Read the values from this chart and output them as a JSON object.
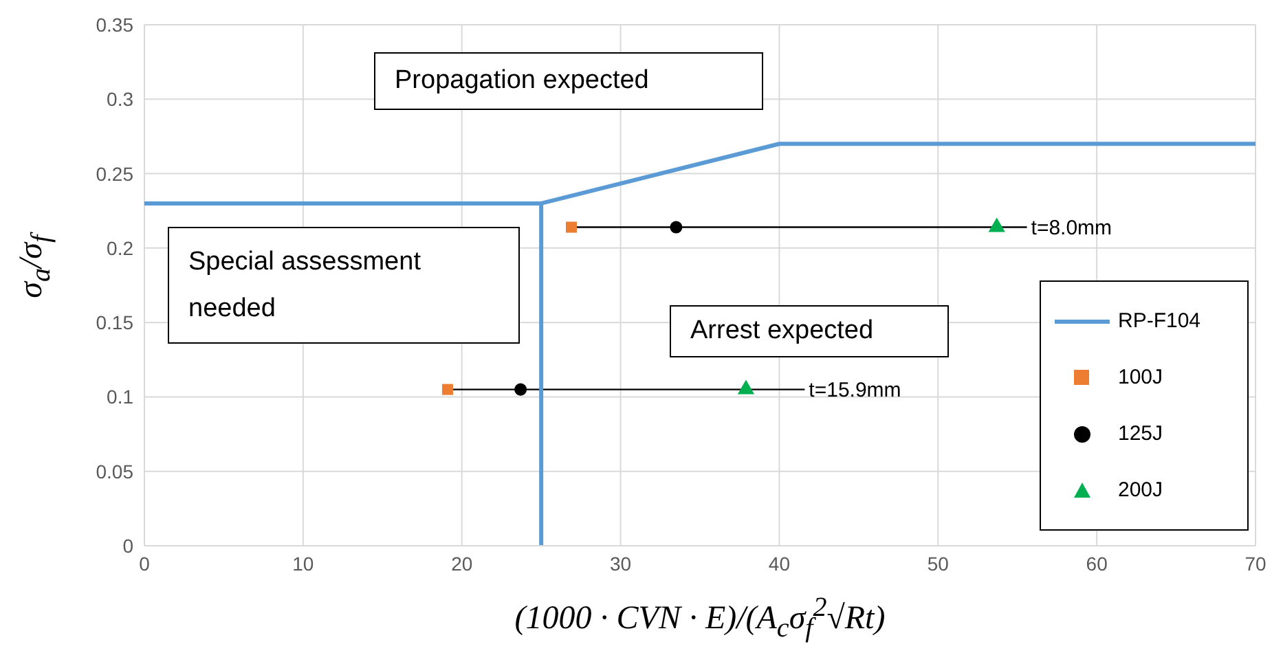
{
  "chart_data": {
    "type": "scatter",
    "xlabel": "(1000 · CVN · E)/(A$_{c}$σ$_{f}$$^{2}$√Rt)",
    "ylabel": "σ$_{a}$/σ$_{f}$",
    "xlim": [
      0,
      70
    ],
    "xticks": [
      0,
      10,
      20,
      30,
      40,
      50,
      60,
      70
    ],
    "ylim": [
      0,
      0.35
    ],
    "yticks": [
      0,
      0.05,
      0.1,
      0.15,
      0.2,
      0.25,
      0.3,
      0.35
    ],
    "grid": true,
    "legend": "bottom right",
    "annotations": [
      "Propagation expected",
      "Special assessment needed",
      "Arrest expected",
      {
        "text": "t=8.0mm",
        "x": 55.6,
        "y": 0.214
      },
      {
        "text": "t=15.9mm",
        "x": 41.6,
        "y": 0.105
      }
    ],
    "series": [
      {
        "type": "line",
        "color": "#000000",
        "marker": "none",
        "x": [
          26.9,
          55.6
        ],
        "values": [
          0.214,
          0.214
        ]
      },
      {
        "type": "line",
        "color": "#000000",
        "marker": "none",
        "x": [
          19.1,
          41.6
        ],
        "values": [
          0.105,
          0.105
        ]
      },
      {
        "name": "RP-F104",
        "type": "line",
        "color": "#5b9bd5",
        "marker": "none",
        "x": [
          0,
          25,
          25,
          25,
          40,
          70
        ],
        "values": [
          0.23,
          0.23,
          0,
          0.23,
          0.27,
          0.27
        ]
      },
      {
        "name": "100J",
        "color": "#ed7d31",
        "marker": "square",
        "x": [
          26.9,
          19.1
        ],
        "values": [
          0.214,
          0.105
        ]
      },
      {
        "name": "125J",
        "color": "#000000",
        "marker": "circle",
        "x": [
          33.5,
          23.7
        ],
        "values": [
          0.214,
          0.105
        ]
      },
      {
        "name": "200J",
        "color": "#00b050",
        "marker": "triangle",
        "x": [
          53.7,
          37.9
        ],
        "values": [
          0.214,
          0.105
        ]
      }
    ]
  }
}
